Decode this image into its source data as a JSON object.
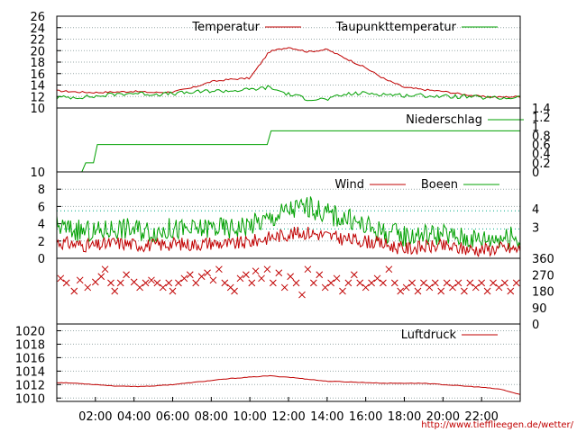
{
  "credit": "http://www.tiefflieegen.de/wetter/",
  "x_ticks": [
    "02:00",
    "04:00",
    "06:00",
    "08:00",
    "10:00",
    "12:00",
    "14:00",
    "16:00",
    "18:00",
    "20:00",
    "22:00"
  ],
  "chart_data": [
    {
      "type": "line",
      "id": "temperature",
      "x": [
        0,
        1,
        2,
        3,
        4,
        5,
        6,
        7,
        8,
        9,
        10,
        11,
        12,
        13,
        14,
        15,
        16,
        17,
        18,
        19,
        20,
        21,
        22,
        23,
        24
      ],
      "series": [
        {
          "name": "Temperatur",
          "color": "#c00000",
          "values": [
            13.0,
            12.8,
            12.7,
            12.8,
            12.9,
            12.7,
            12.8,
            13.5,
            14.6,
            15.0,
            15.2,
            19.8,
            20.6,
            19.8,
            20.2,
            18.6,
            17.0,
            15.0,
            13.6,
            13.2,
            12.9,
            12.4,
            12.0,
            11.9,
            12.0
          ]
        },
        {
          "name": "Taupunkttemperatur",
          "color": "#00a000",
          "values": [
            11.8,
            11.9,
            12.0,
            12.4,
            12.6,
            12.4,
            12.5,
            12.7,
            13.0,
            13.0,
            13.2,
            13.6,
            12.4,
            11.6,
            11.5,
            12.4,
            12.6,
            12.4,
            12.2,
            12.2,
            12.0,
            12.0,
            11.8,
            11.7,
            11.9
          ]
        }
      ],
      "y_ticks": [
        "10",
        "12",
        "14",
        "16",
        "18",
        "20",
        "22",
        "24",
        "26"
      ],
      "ylim": [
        10,
        26
      ]
    },
    {
      "type": "line",
      "id": "precipitation",
      "x": [
        0,
        1.3,
        1.5,
        1.9,
        2.1,
        10.9,
        11.1,
        24
      ],
      "series": [
        {
          "name": "Niederschlag",
          "color": "#00a000",
          "values": [
            0,
            0,
            0.2,
            0.2,
            0.6,
            0.6,
            0.9,
            0.9
          ]
        }
      ],
      "y_ticks": [
        "0",
        "0.2",
        "0.4",
        "0.6",
        "0.8",
        "1",
        "1.2",
        "1.4"
      ],
      "ylim": [
        0,
        1.4
      ]
    },
    {
      "type": "line",
      "id": "wind",
      "x": [
        0,
        1,
        2,
        3,
        4,
        5,
        6,
        7,
        8,
        9,
        10,
        11,
        12,
        13,
        14,
        15,
        16,
        17,
        18,
        19,
        20,
        21,
        22,
        23,
        24
      ],
      "series": [
        {
          "name": "Wind",
          "color": "#c00000",
          "values": [
            1.9,
            1.6,
            1.4,
            1.8,
            1.6,
            1.5,
            1.7,
            1.6,
            1.8,
            1.6,
            1.9,
            2.4,
            2.8,
            3.0,
            2.6,
            2.2,
            2.0,
            1.6,
            1.1,
            1.3,
            1.4,
            1.1,
            1.0,
            1.2,
            1.0
          ]
        },
        {
          "name": "Boeen",
          "color": "#00a000",
          "values": [
            3.7,
            3.2,
            3.0,
            3.5,
            3.4,
            3.1,
            3.4,
            3.2,
            3.6,
            3.4,
            3.9,
            4.5,
            5.6,
            6.0,
            5.2,
            4.6,
            3.7,
            3.0,
            2.6,
            2.8,
            2.7,
            2.4,
            2.2,
            2.5,
            2.3
          ]
        }
      ],
      "y_ticks": [
        "0",
        "2",
        "4",
        "6",
        "8",
        "10"
      ],
      "ylim": [
        0,
        10
      ],
      "beaufort_ticks": [
        "3",
        "4"
      ],
      "beaufort_speeds": [
        3.4,
        5.5
      ]
    },
    {
      "type": "scatter",
      "id": "wind-direction",
      "y_ticks": [
        "0",
        "90",
        "180",
        "270",
        "360"
      ],
      "ylim": [
        0,
        360
      ],
      "series": [
        {
          "name": "",
          "color": "#c00000",
          "points": [
            [
              0.2,
              250
            ],
            [
              0.5,
              225
            ],
            [
              0.9,
              180
            ],
            [
              1.2,
              240
            ],
            [
              1.6,
              200
            ],
            [
              2.0,
              230
            ],
            [
              2.3,
              260
            ],
            [
              2.5,
              300
            ],
            [
              2.8,
              225
            ],
            [
              3.0,
              180
            ],
            [
              3.3,
              225
            ],
            [
              3.6,
              270
            ],
            [
              4.0,
              230
            ],
            [
              4.3,
              200
            ],
            [
              4.6,
              225
            ],
            [
              4.9,
              240
            ],
            [
              5.2,
              225
            ],
            [
              5.5,
              200
            ],
            [
              5.8,
              225
            ],
            [
              6.0,
              180
            ],
            [
              6.3,
              225
            ],
            [
              6.6,
              250
            ],
            [
              6.9,
              270
            ],
            [
              7.2,
              225
            ],
            [
              7.5,
              260
            ],
            [
              7.8,
              280
            ],
            [
              8.1,
              240
            ],
            [
              8.4,
              300
            ],
            [
              8.7,
              225
            ],
            [
              9.0,
              200
            ],
            [
              9.2,
              180
            ],
            [
              9.5,
              250
            ],
            [
              9.8,
              270
            ],
            [
              10.1,
              225
            ],
            [
              10.3,
              290
            ],
            [
              10.6,
              250
            ],
            [
              10.9,
              300
            ],
            [
              11.2,
              225
            ],
            [
              11.5,
              280
            ],
            [
              11.8,
              200
            ],
            [
              12.1,
              260
            ],
            [
              12.4,
              225
            ],
            [
              12.7,
              160
            ],
            [
              13.0,
              300
            ],
            [
              13.3,
              225
            ],
            [
              13.6,
              270
            ],
            [
              13.9,
              200
            ],
            [
              14.2,
              225
            ],
            [
              14.5,
              250
            ],
            [
              14.8,
              180
            ],
            [
              15.1,
              225
            ],
            [
              15.4,
              270
            ],
            [
              15.7,
              225
            ],
            [
              16.0,
              200
            ],
            [
              16.3,
              225
            ],
            [
              16.6,
              250
            ],
            [
              16.9,
              225
            ],
            [
              17.2,
              300
            ],
            [
              17.5,
              225
            ],
            [
              17.8,
              180
            ],
            [
              18.1,
              200
            ],
            [
              18.4,
              225
            ],
            [
              18.7,
              180
            ],
            [
              19.0,
              225
            ],
            [
              19.3,
              200
            ],
            [
              19.6,
              225
            ],
            [
              19.9,
              180
            ],
            [
              20.2,
              225
            ],
            [
              20.5,
              200
            ],
            [
              20.8,
              225
            ],
            [
              21.1,
              180
            ],
            [
              21.4,
              225
            ],
            [
              21.7,
              200
            ],
            [
              22.0,
              225
            ],
            [
              22.3,
              180
            ],
            [
              22.6,
              225
            ],
            [
              22.9,
              200
            ],
            [
              23.2,
              225
            ],
            [
              23.5,
              180
            ],
            [
              23.8,
              225
            ]
          ]
        }
      ]
    },
    {
      "type": "line",
      "id": "pressure",
      "x": [
        0,
        1,
        2,
        3,
        4,
        5,
        6,
        7,
        8,
        9,
        10,
        11,
        12,
        13,
        14,
        15,
        16,
        17,
        18,
        19,
        20,
        21,
        22,
        23,
        24
      ],
      "series": [
        {
          "name": "Luftdruck",
          "color": "#c00000",
          "values": [
            1012.3,
            1012.2,
            1012.0,
            1011.8,
            1011.7,
            1011.8,
            1012.0,
            1012.3,
            1012.6,
            1012.9,
            1013.1,
            1013.3,
            1013.1,
            1012.8,
            1012.5,
            1012.4,
            1012.3,
            1012.2,
            1012.2,
            1012.2,
            1012.0,
            1011.8,
            1011.6,
            1011.3,
            1010.5
          ]
        }
      ],
      "y_ticks": [
        "1010",
        "1012",
        "1014",
        "1016",
        "1018",
        "1020"
      ],
      "ylim": [
        1009.5,
        1021
      ]
    }
  ]
}
